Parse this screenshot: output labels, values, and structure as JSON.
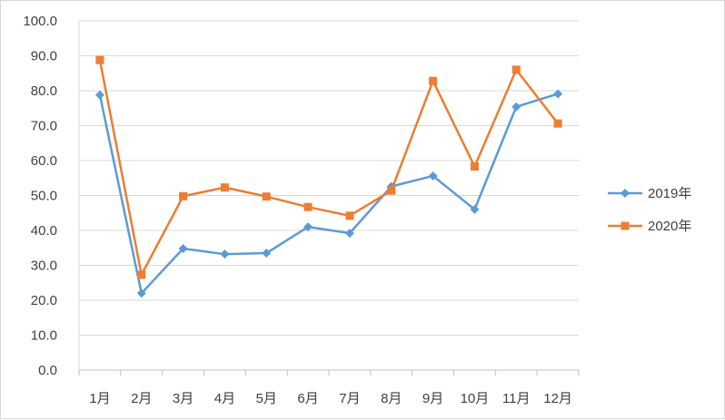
{
  "chart_data": {
    "type": "line",
    "categories": [
      "1月",
      "2月",
      "3月",
      "4月",
      "5月",
      "6月",
      "7月",
      "8月",
      "9月",
      "10月",
      "11月",
      "12月"
    ],
    "series": [
      {
        "name": "2019年",
        "color": "#5b9bd5",
        "marker": "diamond",
        "values": [
          78.8,
          22.0,
          34.8,
          33.2,
          33.5,
          41.0,
          39.2,
          52.6,
          55.6,
          46.0,
          75.4,
          79.1
        ]
      },
      {
        "name": "2020年",
        "color": "#ed7d31",
        "marker": "square",
        "values": [
          88.8,
          27.3,
          49.8,
          52.3,
          49.7,
          46.7,
          44.2,
          51.4,
          82.8,
          58.3,
          86.0,
          70.6
        ]
      }
    ],
    "ylim": [
      0,
      100
    ],
    "yticks": [
      "0.0",
      "10.0",
      "20.0",
      "30.0",
      "40.0",
      "50.0",
      "60.0",
      "70.0",
      "80.0",
      "90.0",
      "100.0"
    ],
    "grid": true,
    "legend_position": "right",
    "title": "",
    "xlabel": "",
    "ylabel": ""
  }
}
